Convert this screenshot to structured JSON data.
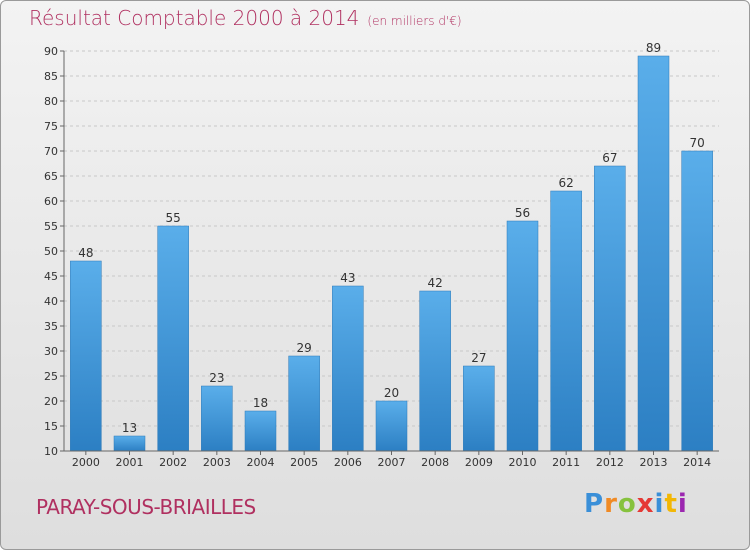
{
  "chart_data": {
    "type": "bar",
    "title": "Résultat Comptable 2000 à 2014",
    "subtitle": "(en milliers d'€)",
    "categories": [
      "2000",
      "2001",
      "2002",
      "2003",
      "2004",
      "2005",
      "2006",
      "2007",
      "2008",
      "2009",
      "2010",
      "2011",
      "2012",
      "2013",
      "2014"
    ],
    "values": [
      48,
      13,
      55,
      23,
      18,
      29,
      43,
      20,
      42,
      27,
      56,
      62,
      67,
      89,
      70
    ],
    "ylim": [
      10,
      90
    ],
    "yticks": [
      10,
      15,
      20,
      25,
      30,
      35,
      40,
      45,
      50,
      55,
      60,
      65,
      70,
      75,
      80,
      85,
      90
    ],
    "grid": true,
    "bar_color": "#4a9fe0"
  },
  "footer": {
    "commune": "PARAY-SOUS-BRIAILLES",
    "logo_text": "Proxiti"
  }
}
